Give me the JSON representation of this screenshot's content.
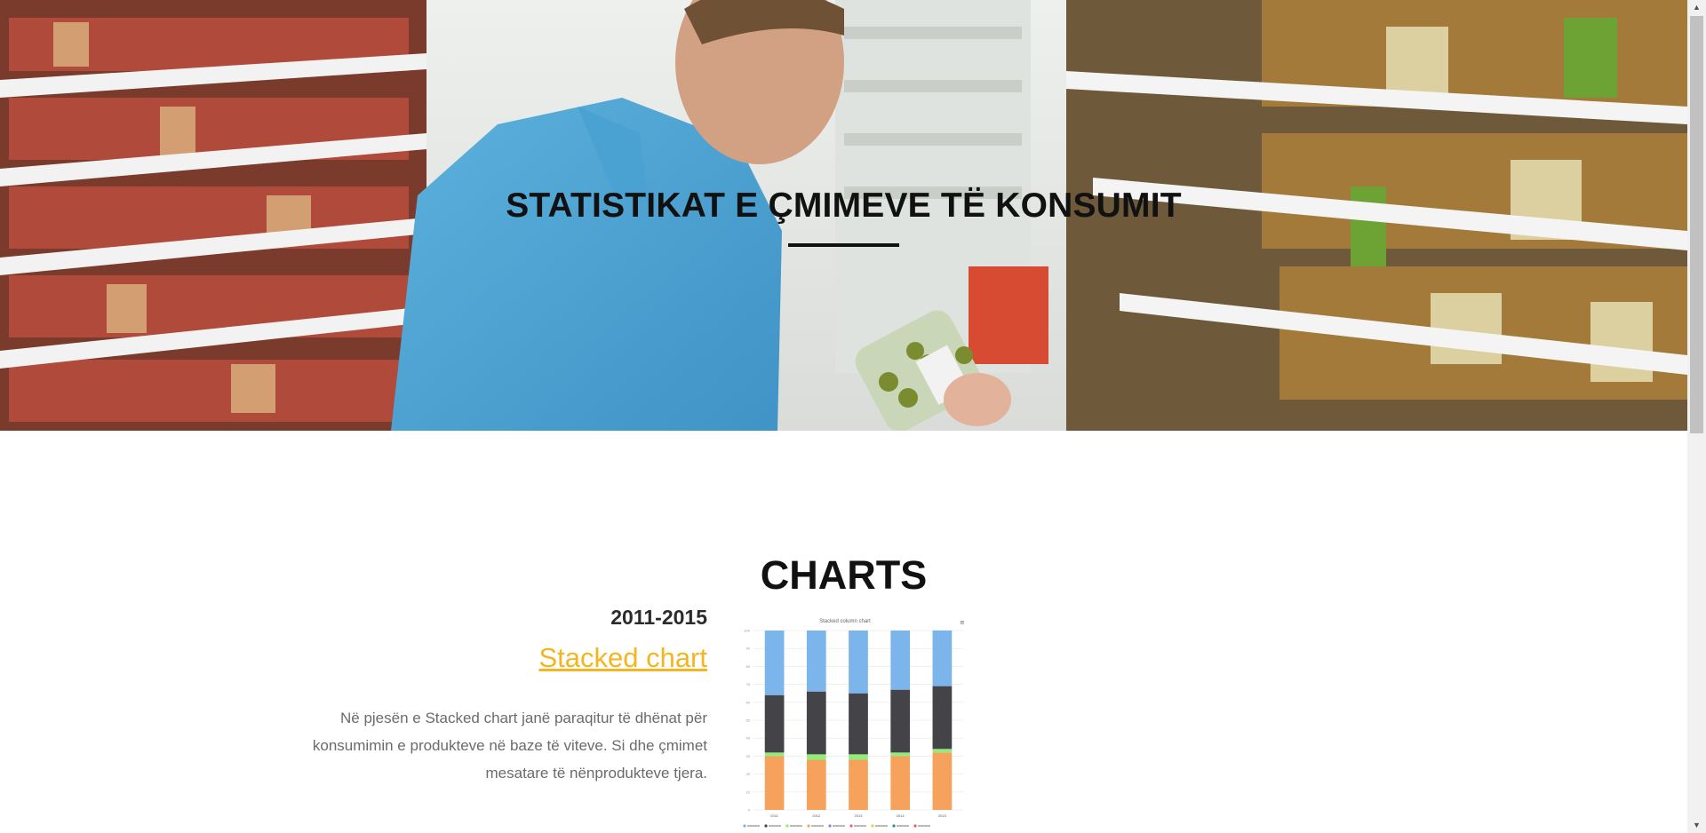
{
  "hero": {
    "title": "STATISTIKAT E ÇMIMEVE TË KONSUMIT"
  },
  "charts_section": {
    "heading": "CHARTS",
    "years": "2011-2015",
    "link_label": "Stacked chart",
    "description": "Në pjesën e Stacked chart janë paraqitur të dhënat për konsumimin e produkteve në baze të viteve. Si dhe çmimet mesatare të nënprodukteve tjera."
  },
  "chart_data": {
    "type": "bar",
    "stacked": true,
    "title": "Stacked column chart",
    "categories": [
      "2011",
      "2012",
      "2013",
      "2014",
      "2015"
    ],
    "ylim": [
      0,
      100
    ],
    "series": [
      {
        "name": "",
        "color": "#f7a25c",
        "values": [
          30,
          28,
          28,
          30,
          32
        ]
      },
      {
        "name": "",
        "color": "#90ed7d",
        "values": [
          2,
          3,
          3,
          2,
          2
        ]
      },
      {
        "name": "",
        "color": "#434348",
        "values": [
          32,
          35,
          34,
          35,
          35
        ]
      },
      {
        "name": "",
        "color": "#7cb5ec",
        "values": [
          36,
          34,
          35,
          33,
          31
        ]
      }
    ]
  },
  "colors": {
    "accent_link": "#f3b61f",
    "heading_text": "#111111",
    "body_text": "#6b6b6b"
  }
}
